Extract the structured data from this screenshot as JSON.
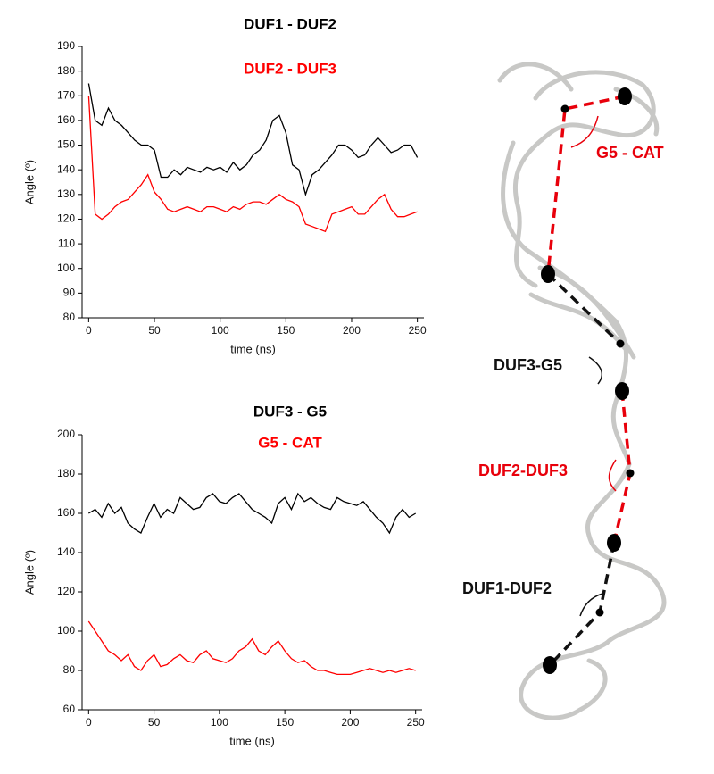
{
  "chart_data": [
    {
      "type": "line",
      "x_label": "time (ns)",
      "y_label": "Angle (º)",
      "xlim": [
        -5,
        255
      ],
      "xticks": [
        0,
        50,
        100,
        150,
        200,
        250
      ],
      "ylim": [
        80,
        190
      ],
      "yticks": [
        80,
        90,
        100,
        110,
        120,
        130,
        140,
        150,
        160,
        170,
        180,
        190
      ],
      "x": [
        0,
        5,
        10,
        15,
        20,
        25,
        30,
        35,
        40,
        45,
        50,
        55,
        60,
        65,
        70,
        75,
        80,
        85,
        90,
        95,
        100,
        105,
        110,
        115,
        120,
        125,
        130,
        135,
        140,
        145,
        150,
        155,
        160,
        165,
        170,
        175,
        180,
        185,
        190,
        195,
        200,
        205,
        210,
        215,
        220,
        225,
        230,
        235,
        240,
        245,
        250
      ],
      "series": [
        {
          "name": "DUF1 - DUF2",
          "color": "#000000",
          "values": [
            175,
            160,
            158,
            165,
            160,
            158,
            155,
            152,
            150,
            150,
            148,
            137,
            137,
            140,
            138,
            141,
            140,
            139,
            141,
            140,
            141,
            139,
            143,
            140,
            142,
            146,
            148,
            152,
            160,
            162,
            155,
            142,
            140,
            130,
            138,
            140,
            143,
            146,
            150,
            150,
            148,
            145,
            146,
            150,
            153,
            150,
            147,
            148,
            150,
            150,
            145
          ]
        },
        {
          "name": "DUF2 - DUF3",
          "color": "#ff0000",
          "values": [
            170,
            122,
            120,
            122,
            125,
            127,
            128,
            131,
            134,
            138,
            131,
            128,
            124,
            123,
            124,
            125,
            124,
            123,
            125,
            125,
            124,
            123,
            125,
            124,
            126,
            127,
            127,
            126,
            128,
            130,
            128,
            127,
            125,
            118,
            117,
            116,
            115,
            122,
            123,
            124,
            125,
            122,
            122,
            125,
            128,
            130,
            124,
            121,
            121,
            122,
            123
          ]
        }
      ]
    },
    {
      "type": "line",
      "x_label": "time (ns)",
      "y_label": "Angle (º)",
      "xlim": [
        -5,
        255
      ],
      "xticks": [
        0,
        50,
        100,
        150,
        200,
        250
      ],
      "ylim": [
        60,
        200
      ],
      "yticks": [
        60,
        80,
        100,
        120,
        140,
        160,
        180,
        200
      ],
      "x": [
        0,
        5,
        10,
        15,
        20,
        25,
        30,
        35,
        40,
        45,
        50,
        55,
        60,
        65,
        70,
        75,
        80,
        85,
        90,
        95,
        100,
        105,
        110,
        115,
        120,
        125,
        130,
        135,
        140,
        145,
        150,
        155,
        160,
        165,
        170,
        175,
        180,
        185,
        190,
        195,
        200,
        205,
        210,
        215,
        220,
        225,
        230,
        235,
        240,
        245,
        250
      ],
      "series": [
        {
          "name": "DUF3 - G5",
          "color": "#000000",
          "values": [
            160,
            162,
            158,
            165,
            160,
            163,
            155,
            152,
            150,
            158,
            165,
            158,
            162,
            160,
            168,
            165,
            162,
            163,
            168,
            170,
            166,
            165,
            168,
            170,
            166,
            162,
            160,
            158,
            155,
            165,
            168,
            162,
            170,
            166,
            168,
            165,
            163,
            162,
            168,
            166,
            165,
            164,
            166,
            162,
            158,
            155,
            150,
            158,
            162,
            158,
            160
          ]
        },
        {
          "name": "G5 - CAT",
          "color": "#ff0000",
          "values": [
            105,
            100,
            95,
            90,
            88,
            85,
            88,
            82,
            80,
            85,
            88,
            82,
            83,
            86,
            88,
            85,
            84,
            88,
            90,
            86,
            85,
            84,
            86,
            90,
            92,
            96,
            90,
            88,
            92,
            95,
            90,
            86,
            84,
            85,
            82,
            80,
            80,
            79,
            78,
            78,
            78,
            79,
            80,
            81,
            80,
            79,
            80,
            79,
            80,
            81,
            80
          ]
        }
      ]
    }
  ],
  "diagram": {
    "labels": [
      "G5 - CAT",
      "DUF3-G5",
      "DUF2-DUF3",
      "DUF1-DUF2"
    ]
  }
}
